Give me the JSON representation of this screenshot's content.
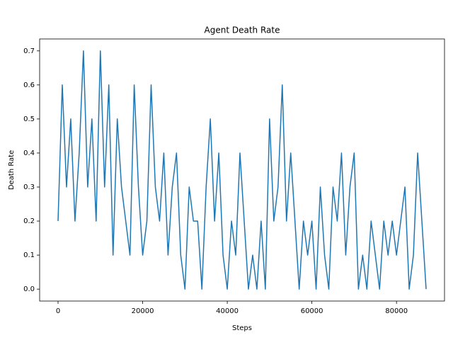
{
  "chart_data": {
    "type": "line",
    "title": "Agent Death Rate",
    "x_label": "Steps",
    "y_label": "Death Rate",
    "x": [
      0,
      1000,
      2000,
      3000,
      4000,
      5000,
      6000,
      7000,
      8000,
      9000,
      10000,
      11000,
      12000,
      13000,
      14000,
      15000,
      16000,
      17000,
      18000,
      19000,
      20000,
      21000,
      22000,
      23000,
      24000,
      25000,
      26000,
      27000,
      28000,
      29000,
      30000,
      31000,
      32000,
      33000,
      34000,
      35000,
      36000,
      37000,
      38000,
      39000,
      40000,
      41000,
      42000,
      43000,
      44000,
      45000,
      46000,
      47000,
      48000,
      49000,
      50000,
      51000,
      52000,
      53000,
      54000,
      55000,
      56000,
      57000,
      58000,
      59000,
      60000,
      61000,
      62000,
      63000,
      64000,
      65000,
      66000,
      67000,
      68000,
      69000,
      70000,
      71000,
      72000,
      73000,
      74000,
      75000,
      76000,
      77000,
      78000,
      79000,
      80000,
      81000,
      82000,
      83000,
      84000,
      85000,
      86000,
      87000
    ],
    "series": [
      {
        "name": "Death Rate",
        "color": "#1f77b4",
        "values": [
          0.2,
          0.6,
          0.3,
          0.5,
          0.2,
          0.4,
          0.7,
          0.3,
          0.5,
          0.2,
          0.7,
          0.3,
          0.6,
          0.1,
          0.5,
          0.3,
          0.2,
          0.1,
          0.6,
          0.3,
          0.1,
          0.2,
          0.6,
          0.3,
          0.2,
          0.4,
          0.1,
          0.3,
          0.4,
          0.1,
          0.0,
          0.3,
          0.2,
          0.2,
          0.0,
          0.3,
          0.5,
          0.2,
          0.4,
          0.1,
          0.0,
          0.2,
          0.1,
          0.4,
          0.2,
          0.0,
          0.1,
          0.0,
          0.2,
          0.0,
          0.5,
          0.2,
          0.3,
          0.6,
          0.2,
          0.4,
          0.2,
          0.0,
          0.2,
          0.1,
          0.2,
          0.0,
          0.3,
          0.1,
          0.0,
          0.3,
          0.2,
          0.4,
          0.1,
          0.3,
          0.4,
          0.0,
          0.1,
          0.0,
          0.2,
          0.1,
          0.0,
          0.2,
          0.1,
          0.2,
          0.1,
          0.2,
          0.3,
          0.0,
          0.1,
          0.4,
          0.2,
          0.0
        ]
      }
    ],
    "xlim": [
      -4350,
      91350
    ],
    "ylim": [
      -0.035,
      0.735
    ],
    "xticks": [
      0,
      20000,
      40000,
      60000,
      80000
    ],
    "yticks": [
      {
        "value": 0,
        "label": "0.0"
      },
      0.1,
      0.2,
      0.3,
      0.4,
      0.5,
      0.6,
      0.7
    ]
  }
}
